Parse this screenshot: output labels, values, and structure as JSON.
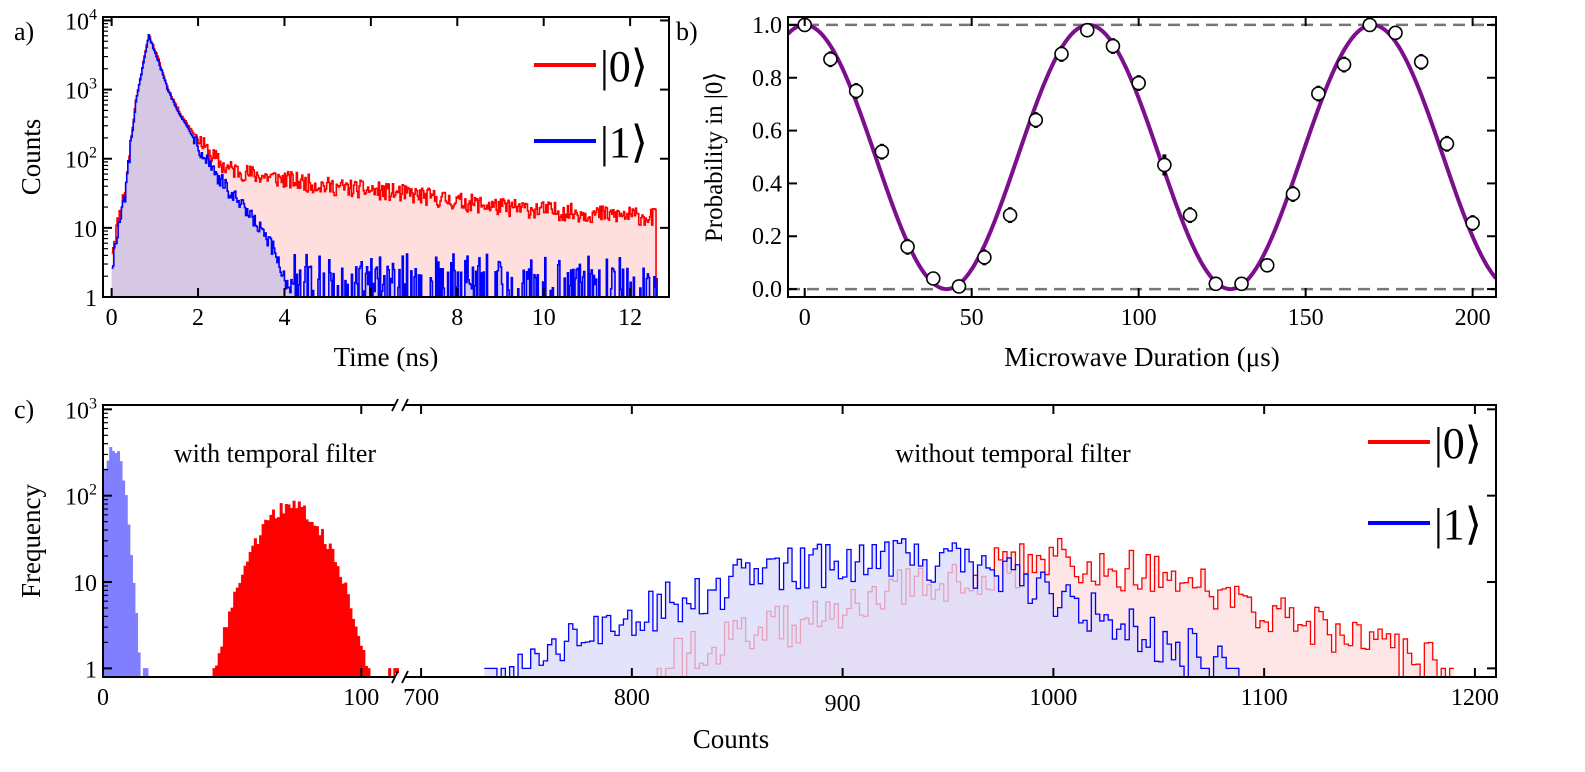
{
  "chart_data": [
    {
      "panel": "a)",
      "type": "area",
      "title": "",
      "xlabel": "Time (ns)",
      "ylabel": "Counts",
      "xlim": [
        -0.2,
        12.9
      ],
      "ylim_log10": [
        0,
        4.05
      ],
      "yscale": "log",
      "xticks": [
        "0",
        "2",
        "4",
        "6",
        "8",
        "10",
        "12"
      ],
      "yticks": [
        {
          "base": "1",
          "exp": ""
        },
        {
          "base": "10",
          "exp": ""
        },
        {
          "base": "10",
          "exp": "2"
        },
        {
          "base": "10",
          "exp": "3"
        },
        {
          "base": "10",
          "exp": "4"
        }
      ],
      "legend_position": "top-right",
      "series": [
        {
          "name": "|0⟩",
          "color": "#ff0000",
          "fill": "#ffdede",
          "x": [
            0,
            0.3,
            0.55,
            0.85,
            1.05,
            1.3,
            1.6,
            1.8,
            2.2,
            2.6,
            3.2,
            3.6,
            4.0,
            5.0,
            6.0,
            7.0,
            8.0,
            9.0,
            10.0,
            11.0,
            12.0,
            12.6
          ],
          "y": [
            5,
            35,
            700,
            6200,
            3000,
            1000,
            430,
            280,
            130,
            75,
            60,
            55,
            50,
            40,
            35,
            30,
            24,
            20,
            18,
            16,
            15,
            14
          ]
        },
        {
          "name": "|1⟩",
          "color": "#0000ff",
          "fill": "#cfc4e6",
          "x": [
            0,
            0.3,
            0.55,
            0.85,
            1.05,
            1.3,
            1.6,
            1.8,
            2.2,
            2.6,
            3.0,
            3.4,
            3.8,
            4.0,
            4.2
          ],
          "y": [
            3,
            30,
            650,
            6000,
            2800,
            950,
            400,
            250,
            100,
            40,
            20,
            10,
            4,
            1.8,
            1.2
          ],
          "tail_level": 1.3
        }
      ]
    },
    {
      "panel": "b)",
      "type": "scatter",
      "title": "",
      "xlabel": "Microwave Duration (μs)",
      "ylabel": "Probability in |0⟩",
      "xlim": [
        -5,
        207
      ],
      "ylim": [
        -0.03,
        1.03
      ],
      "xticks": [
        "0",
        "50",
        "100",
        "150",
        "200"
      ],
      "yticks": [
        "0.0",
        "0.2",
        "0.4",
        "0.6",
        "0.8",
        "1.0"
      ],
      "reference_lines": [
        0,
        1
      ],
      "fit": {
        "name": "fit",
        "color": "#7b0f8c",
        "model": "0.5 + 0.5*cos(2*pi*x/85)"
      },
      "points": {
        "x": [
          0,
          7.7,
          15.4,
          23.1,
          30.8,
          38.5,
          46.2,
          53.8,
          61.5,
          69.2,
          76.9,
          84.6,
          92.3,
          100,
          107.7,
          115.4,
          123.1,
          130.8,
          138.5,
          146.2,
          153.8,
          161.5,
          169.2,
          176.9,
          184.6,
          192.3,
          200
        ],
        "y": [
          1.0,
          0.87,
          0.75,
          0.52,
          0.16,
          0.04,
          0.01,
          0.12,
          0.28,
          0.64,
          0.89,
          0.98,
          0.92,
          0.78,
          0.47,
          0.28,
          0.02,
          0.02,
          0.09,
          0.36,
          0.74,
          0.85,
          1.0,
          0.97,
          0.86,
          0.55,
          0.25
        ],
        "err": [
          0.01,
          0.03,
          0.03,
          0.03,
          0.03,
          0.02,
          0.01,
          0.03,
          0.03,
          0.03,
          0.03,
          0.02,
          0.03,
          0.03,
          0.04,
          0.03,
          0.01,
          0.01,
          0.02,
          0.03,
          0.03,
          0.03,
          0.01,
          0.02,
          0.03,
          0.03,
          0.03
        ]
      }
    },
    {
      "panel": "c)",
      "type": "bar",
      "title": "",
      "xlabel": "Counts",
      "ylabel": "Frequency",
      "yscale": "log",
      "ylim_log10": [
        -0.1,
        3.05
      ],
      "xaxis_break": true,
      "segments": [
        {
          "xlim": [
            0,
            115
          ],
          "xticks": [
            "0",
            "100"
          ]
        },
        {
          "xlim": [
            690,
            1210
          ],
          "xticks": [
            "700",
            "800",
            "900",
            "1000",
            "1100",
            "1200"
          ]
        }
      ],
      "yticks": [
        {
          "base": "1",
          "exp": ""
        },
        {
          "base": "10",
          "exp": ""
        },
        {
          "base": "10",
          "exp": "2"
        },
        {
          "base": "10",
          "exp": "3"
        }
      ],
      "annotations": [
        "with temporal filter",
        "without temporal filter"
      ],
      "legend_position": "top-right",
      "series": [
        {
          "name": "|0⟩",
          "color": "#ff0000",
          "filtered_mean": 73,
          "filtered_sd": 10,
          "filtered_peak": 75,
          "raw_x": [
            820,
            860,
            900,
            940,
            980,
            1000,
            1020,
            1060,
            1100,
            1140,
            1180
          ],
          "raw_y": [
            1.3,
            2.5,
            5,
            10,
            15,
            18,
            16,
            10,
            5,
            2,
            1.2
          ]
        },
        {
          "name": "|1⟩",
          "color": "#0000ff",
          "filtered_mean": 4,
          "filtered_sd": 3,
          "filtered_peak": 350,
          "raw_x": [
            740,
            780,
            820,
            860,
            900,
            930,
            960,
            1000,
            1040,
            1080
          ],
          "raw_y": [
            1.2,
            2.5,
            6,
            12,
            17,
            18,
            15,
            7,
            2.5,
            1.2
          ]
        }
      ]
    }
  ]
}
